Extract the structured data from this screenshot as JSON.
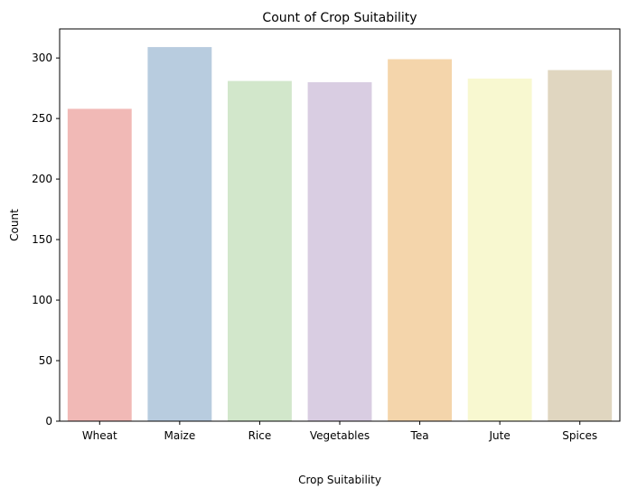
{
  "chart_data": {
    "type": "bar",
    "title": "Count of Crop Suitability",
    "xlabel": "Crop Suitability",
    "ylabel": "Count",
    "categories": [
      "Wheat",
      "Maize",
      "Rice",
      "Vegetables",
      "Tea",
      "Jute",
      "Spices"
    ],
    "values": [
      258,
      309,
      281,
      280,
      299,
      283,
      290
    ],
    "colors": [
      "#f1b9b6",
      "#b8ccdf",
      "#d2e7cb",
      "#d9cde2",
      "#f4d5ab",
      "#f8f8d0",
      "#e0d6c0"
    ],
    "ylim": [
      0,
      324
    ],
    "yticks": [
      0,
      50,
      100,
      150,
      200,
      250,
      300
    ],
    "grid": false,
    "legend": "none"
  }
}
